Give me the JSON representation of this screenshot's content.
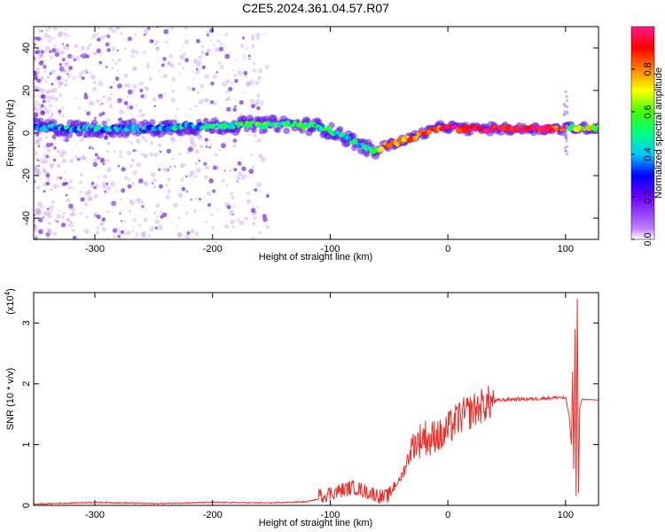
{
  "chart_data": [
    {
      "type": "heatmap",
      "title": "C2E5.2024.361.04.57.R07",
      "xlabel": "Height of straight line (km)",
      "ylabel": "Frequency (Hz)",
      "xlim": [
        -352,
        128
      ],
      "ylim": [
        -50,
        50
      ],
      "xticks": [
        -300,
        -200,
        -100,
        0,
        100
      ],
      "yticks": [
        -40,
        -20,
        0,
        20,
        40
      ],
      "colorbar": {
        "label": "Normalized spectral amplitude",
        "range": [
          0.0,
          1.0
        ],
        "ticks": [
          "0.0",
          "0.2",
          "0.4",
          "0.6",
          "0.8"
        ],
        "tick_values": [
          0.0,
          0.2,
          0.4,
          0.6,
          0.8
        ],
        "colors": [
          "#ffffff",
          "#9a5cff",
          "#0000ff",
          "#00c8ff",
          "#00ff00",
          "#ffff00",
          "#ff8000",
          "#ff0000",
          "#ff1a8c"
        ]
      },
      "ridge": {
        "x": [
          -352,
          -320,
          -290,
          -260,
          -230,
          -200,
          -170,
          -140,
          -110,
          -95,
          -80,
          -70,
          -60,
          -55,
          -45,
          -35,
          -20,
          -10,
          0,
          10,
          30,
          60,
          90,
          100,
          105,
          110,
          128
        ],
        "frequency": [
          3,
          2,
          2,
          2,
          3,
          3,
          4,
          4,
          3,
          0,
          -4,
          -7,
          -9,
          -6,
          -5,
          -3,
          0,
          2,
          3,
          2,
          2,
          2,
          2,
          2,
          3,
          2,
          3
        ],
        "amplitude": [
          0.35,
          0.4,
          0.4,
          0.38,
          0.42,
          0.45,
          0.5,
          0.52,
          0.48,
          0.5,
          0.45,
          0.5,
          0.6,
          0.75,
          0.8,
          0.82,
          0.85,
          0.88,
          0.9,
          0.92,
          0.95,
          0.95,
          0.9,
          0.85,
          0.5,
          0.7,
          0.6
        ]
      }
    },
    {
      "type": "line",
      "xlabel": "Height of straight line (km)",
      "ylabel": "SNR (10 * v/v)",
      "y_multiplier": "(x10",
      "y_multiplier_exp": "4",
      "y_multiplier_close": ")",
      "xlim": [
        -352,
        128
      ],
      "ylim": [
        0,
        3.5
      ],
      "xticks": [
        -300,
        -200,
        -100,
        0,
        100
      ],
      "yticks": [
        0,
        1,
        2,
        3
      ],
      "color": "#e8302a",
      "series": [
        {
          "x": [
            -352,
            -300,
            -250,
            -200,
            -150,
            -120,
            -100,
            -90,
            -80,
            -70,
            -60,
            -55,
            -50,
            -45,
            -40,
            -35,
            -30,
            -25,
            -20,
            -15,
            -10,
            -5,
            0,
            5,
            10,
            20,
            30,
            40,
            50,
            60,
            70,
            80,
            90,
            95,
            100,
            103,
            105,
            106,
            107,
            108,
            109,
            110,
            111,
            112,
            114,
            118,
            122,
            128
          ],
          "y": [
            0.02,
            0.05,
            0.03,
            0.05,
            0.04,
            0.06,
            0.15,
            0.2,
            0.25,
            0.18,
            0.12,
            0.08,
            0.12,
            0.3,
            0.45,
            0.7,
            1.0,
            1.05,
            1.15,
            1.05,
            1.2,
            1.1,
            1.25,
            1.35,
            1.45,
            1.55,
            1.65,
            1.72,
            1.74,
            1.75,
            1.75,
            1.76,
            1.77,
            1.78,
            1.76,
            1.5,
            1.0,
            2.2,
            0.6,
            2.9,
            0.15,
            3.4,
            0.2,
            1.6,
            1.75,
            1.74,
            1.74,
            1.73
          ]
        }
      ]
    }
  ]
}
